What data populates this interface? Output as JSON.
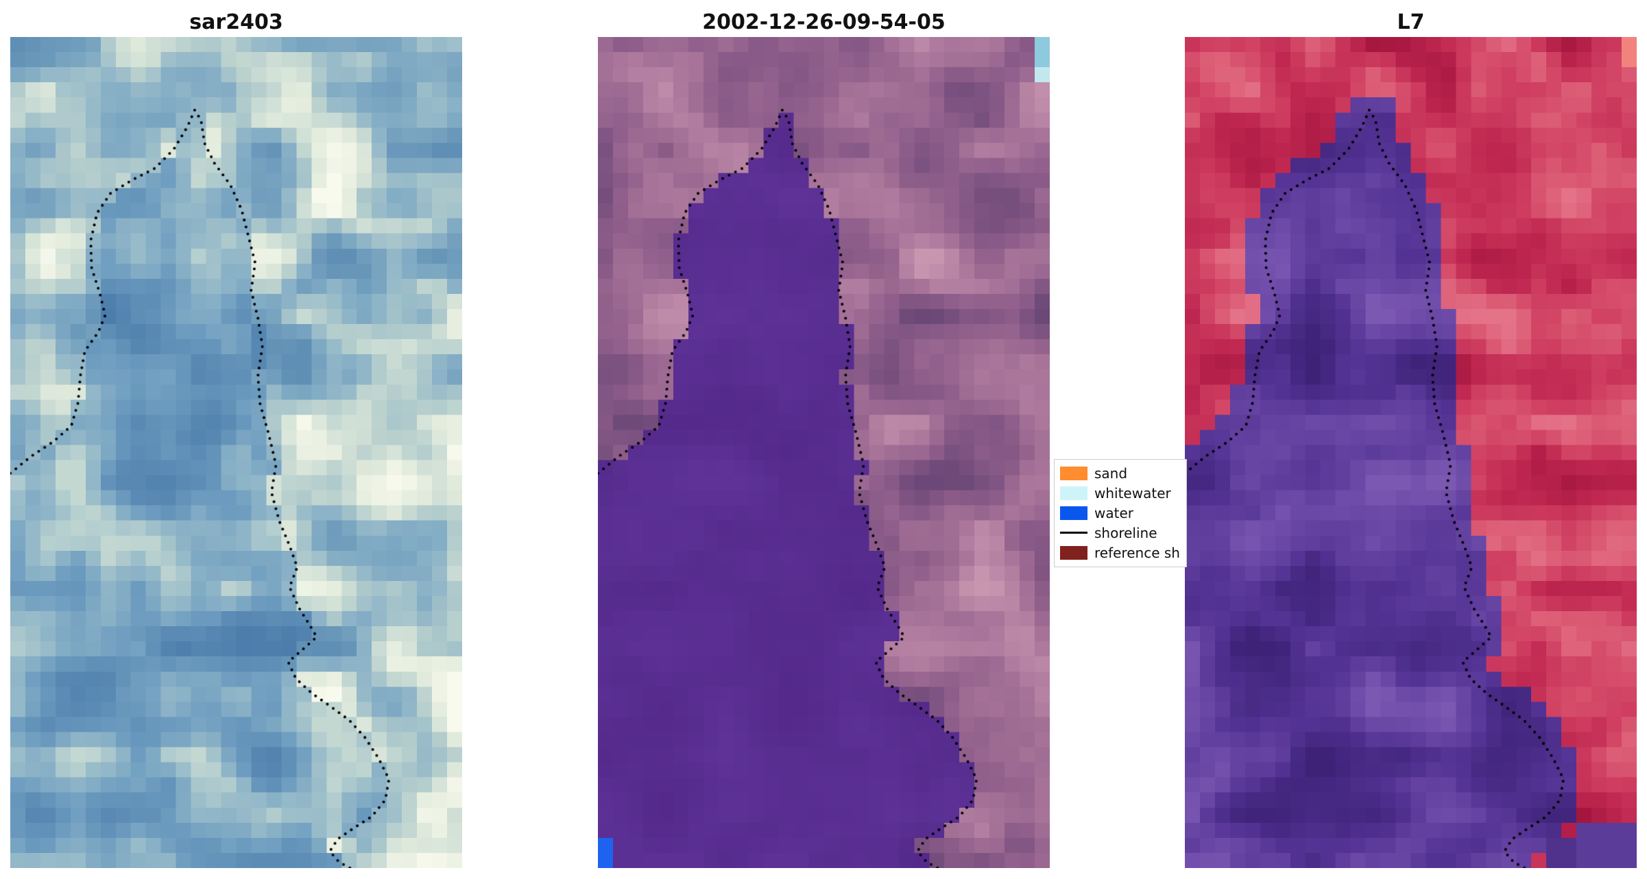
{
  "figure": {
    "background": "#ffffff",
    "panels": [
      {
        "title": "sar2403"
      },
      {
        "title": "2002-12-26-09-54-05"
      },
      {
        "title": "L7"
      }
    ],
    "legend": {
      "items": [
        {
          "label": "sand",
          "type": "patch",
          "color": "#ff8c2e"
        },
        {
          "label": "whitewater",
          "type": "patch",
          "color": "#cdf4f8"
        },
        {
          "label": "water",
          "type": "patch",
          "color": "#0a57ee"
        },
        {
          "label": "shoreline",
          "type": "line",
          "color": "#000000"
        },
        {
          "label": "reference sh",
          "type": "patch",
          "color": "#7f211d"
        }
      ]
    }
  },
  "chart_data": {
    "type": "heatmap",
    "description": "Three coregistered satellite image panels (SAR composite, classified scene dated 2002-12-26-09-54-05, Landsat-7 false color) with a detected shoreline overlaid as a black dotted curve; legend maps classes sand / whitewater / water / shoreline / reference shoreline.",
    "grid": {
      "cols": 30,
      "rows": 55
    },
    "dot_style": {
      "color": "#000000",
      "radius": 2.05,
      "spacing": 10.5
    },
    "shoreline_norm": [
      [
        0.0,
        0.525
      ],
      [
        0.045,
        0.505
      ],
      [
        0.095,
        0.487
      ],
      [
        0.135,
        0.468
      ],
      [
        0.15,
        0.44
      ],
      [
        0.155,
        0.408
      ],
      [
        0.165,
        0.378
      ],
      [
        0.195,
        0.355
      ],
      [
        0.21,
        0.335
      ],
      [
        0.198,
        0.308
      ],
      [
        0.18,
        0.278
      ],
      [
        0.178,
        0.245
      ],
      [
        0.192,
        0.212
      ],
      [
        0.222,
        0.188
      ],
      [
        0.27,
        0.172
      ],
      [
        0.32,
        0.158
      ],
      [
        0.362,
        0.135
      ],
      [
        0.392,
        0.108
      ],
      [
        0.408,
        0.088
      ],
      [
        0.422,
        0.1
      ],
      [
        0.43,
        0.128
      ],
      [
        0.452,
        0.152
      ],
      [
        0.487,
        0.178
      ],
      [
        0.512,
        0.208
      ],
      [
        0.528,
        0.242
      ],
      [
        0.542,
        0.272
      ],
      [
        0.533,
        0.305
      ],
      [
        0.548,
        0.338
      ],
      [
        0.558,
        0.372
      ],
      [
        0.548,
        0.408
      ],
      [
        0.553,
        0.442
      ],
      [
        0.572,
        0.478
      ],
      [
        0.588,
        0.515
      ],
      [
        0.578,
        0.548
      ],
      [
        0.595,
        0.582
      ],
      [
        0.618,
        0.612
      ],
      [
        0.635,
        0.638
      ],
      [
        0.618,
        0.662
      ],
      [
        0.64,
        0.688
      ],
      [
        0.663,
        0.708
      ],
      [
        0.678,
        0.722
      ],
      [
        0.645,
        0.738
      ],
      [
        0.615,
        0.752
      ],
      [
        0.632,
        0.772
      ],
      [
        0.668,
        0.79
      ],
      [
        0.71,
        0.806
      ],
      [
        0.75,
        0.822
      ],
      [
        0.785,
        0.843
      ],
      [
        0.815,
        0.868
      ],
      [
        0.838,
        0.893
      ],
      [
        0.83,
        0.918
      ],
      [
        0.8,
        0.938
      ],
      [
        0.76,
        0.952
      ],
      [
        0.725,
        0.965
      ],
      [
        0.707,
        0.98
      ],
      [
        0.728,
        0.993
      ],
      [
        0.752,
        1.0
      ]
    ],
    "panels": [
      {
        "name": "sar2403",
        "seed": 7,
        "contrast": 1.45,
        "dilate": 0,
        "land_stops": [
          [
            0,
            "#5f8fb5"
          ],
          [
            0.38,
            "#86afc6"
          ],
          [
            0.62,
            "#b7cfcd"
          ],
          [
            0.82,
            "#e3ecdd"
          ],
          [
            1,
            "#f9faee"
          ]
        ],
        "water_stops": [
          [
            0,
            "#4c7dab"
          ],
          [
            0.5,
            "#6e9dc0"
          ],
          [
            0.85,
            "#9dbfca"
          ],
          [
            1,
            "#c4d8d2"
          ]
        ],
        "extras": []
      },
      {
        "name": "2002-12-26-09-54-05",
        "seed": 21,
        "contrast": 1.3,
        "dilate": 0,
        "land_stops": [
          [
            0,
            "#6b4877"
          ],
          [
            0.35,
            "#8c5c89"
          ],
          [
            0.65,
            "#a87499"
          ],
          [
            0.85,
            "#bc89a8"
          ],
          [
            1,
            "#c996b0"
          ]
        ],
        "water_stops": [
          [
            0,
            "#54298b"
          ],
          [
            1,
            "#5e3297"
          ]
        ],
        "extras": [
          {
            "rect": [
              0.0,
              0.972,
              0.032,
              1.0
            ],
            "color": "#1e63ef"
          },
          {
            "rect": [
              0.955,
              0.0,
              1.0,
              0.028
            ],
            "color": "#8ecade"
          },
          {
            "rect": [
              0.978,
              0.028,
              1.0,
              0.052
            ],
            "color": "#c2e8ee"
          }
        ]
      },
      {
        "name": "L7",
        "seed": 33,
        "contrast": 1.35,
        "dilate": 1,
        "land_stops": [
          [
            0,
            "#a3153e"
          ],
          [
            0.35,
            "#bf2750"
          ],
          [
            0.62,
            "#d04062"
          ],
          [
            0.85,
            "#dd6078"
          ],
          [
            1,
            "#e4738a"
          ]
        ],
        "water_stops": [
          [
            0,
            "#3e2278"
          ],
          [
            0.45,
            "#533394"
          ],
          [
            0.8,
            "#6a48a6"
          ],
          [
            1,
            "#7b58b2"
          ]
        ],
        "extras": [
          {
            "rect": [
              0.955,
              0.0,
              1.0,
              0.042
            ],
            "color": "#f2837c"
          },
          {
            "rect": [
              0.875,
              0.945,
              1.0,
              1.0
            ],
            "color": "#5b3c98"
          },
          {
            "rect": [
              0.81,
              0.968,
              0.875,
              1.0
            ],
            "color": "#50318c"
          }
        ]
      }
    ]
  }
}
